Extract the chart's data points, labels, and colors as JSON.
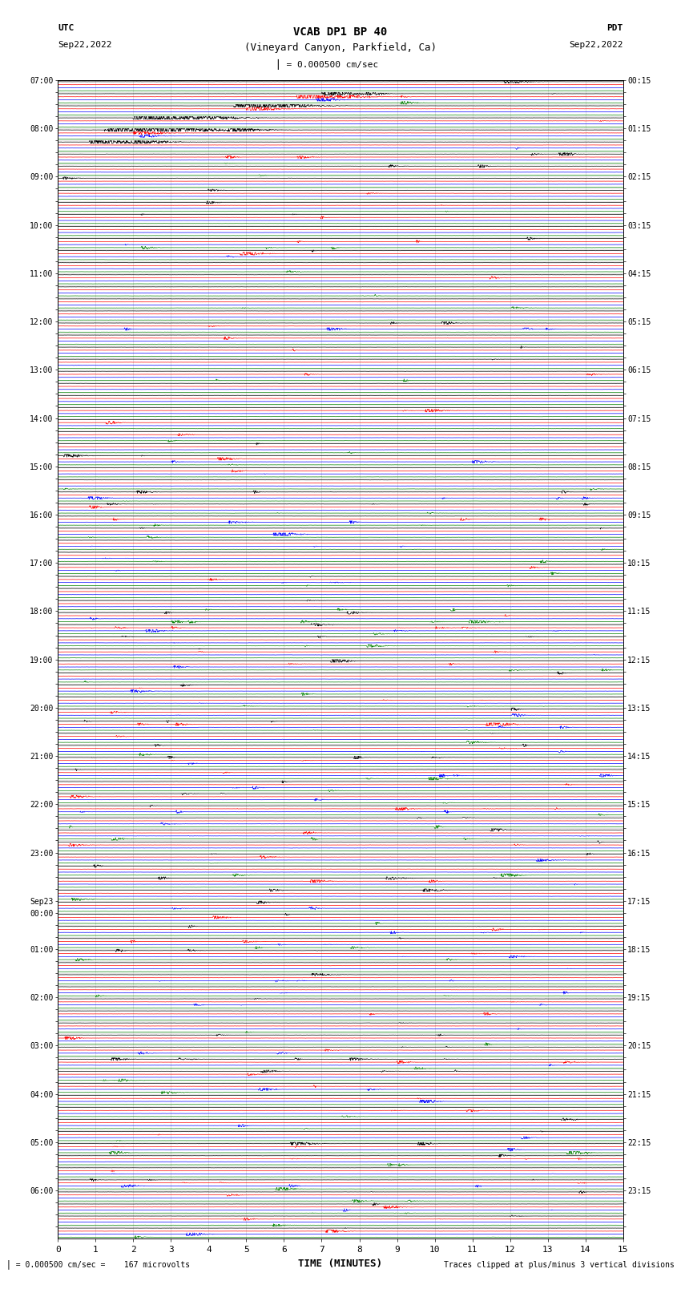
{
  "title_line1": "VCAB DP1 BP 40",
  "title_line2": "(Vineyard Canyon, Parkfield, Ca)",
  "scale_text": "I = 0.000500 cm/sec",
  "left_label_top": "UTC",
  "left_label_date": "Sep22,2022",
  "right_label_top": "PDT",
  "right_label_date": "Sep22,2022",
  "xlabel": "TIME (MINUTES)",
  "bottom_left_text": "  = 0.000500 cm/sec =    167 microvolts",
  "bottom_right_text": "Traces clipped at plus/minus 3 vertical divisions",
  "left_times_utc": [
    "07:00",
    "",
    "",
    "",
    "08:00",
    "",
    "",
    "",
    "09:00",
    "",
    "",
    "",
    "10:00",
    "",
    "",
    "",
    "11:00",
    "",
    "",
    "",
    "12:00",
    "",
    "",
    "",
    "13:00",
    "",
    "",
    "",
    "14:00",
    "",
    "",
    "",
    "15:00",
    "",
    "",
    "",
    "16:00",
    "",
    "",
    "",
    "17:00",
    "",
    "",
    "",
    "18:00",
    "",
    "",
    "",
    "19:00",
    "",
    "",
    "",
    "20:00",
    "",
    "",
    "",
    "21:00",
    "",
    "",
    "",
    "22:00",
    "",
    "",
    "",
    "23:00",
    "",
    "",
    "",
    "Sep23",
    "00:00",
    "",
    "",
    "01:00",
    "",
    "",
    "",
    "02:00",
    "",
    "",
    "",
    "03:00",
    "",
    "",
    "",
    "04:00",
    "",
    "",
    "",
    "05:00",
    "",
    "",
    "",
    "06:00",
    "",
    "",
    ""
  ],
  "right_times_pdt": [
    "00:15",
    "",
    "",
    "",
    "01:15",
    "",
    "",
    "",
    "02:15",
    "",
    "",
    "",
    "03:15",
    "",
    "",
    "",
    "04:15",
    "",
    "",
    "",
    "05:15",
    "",
    "",
    "",
    "06:15",
    "",
    "",
    "",
    "07:15",
    "",
    "",
    "",
    "08:15",
    "",
    "",
    "",
    "09:15",
    "",
    "",
    "",
    "10:15",
    "",
    "",
    "",
    "11:15",
    "",
    "",
    "",
    "12:15",
    "",
    "",
    "",
    "13:15",
    "",
    "",
    "",
    "14:15",
    "",
    "",
    "",
    "15:15",
    "",
    "",
    "",
    "16:15",
    "",
    "",
    "",
    "17:15",
    "",
    "",
    "",
    "18:15",
    "",
    "",
    "",
    "19:15",
    "",
    "",
    "",
    "20:15",
    "",
    "",
    "",
    "21:15",
    "",
    "",
    "",
    "22:15",
    "",
    "",
    "",
    "23:15",
    "",
    "",
    ""
  ],
  "colors": [
    "black",
    "red",
    "blue",
    "green"
  ],
  "n_rows": 96,
  "n_channels": 4,
  "xmin": 0,
  "xmax": 15,
  "background_color": "white",
  "grid_color": "#cccccc",
  "figsize": [
    8.5,
    16.13
  ],
  "dpi": 100,
  "trace_lw": 0.5,
  "base_noise": 0.012,
  "clip_divisions": 3
}
